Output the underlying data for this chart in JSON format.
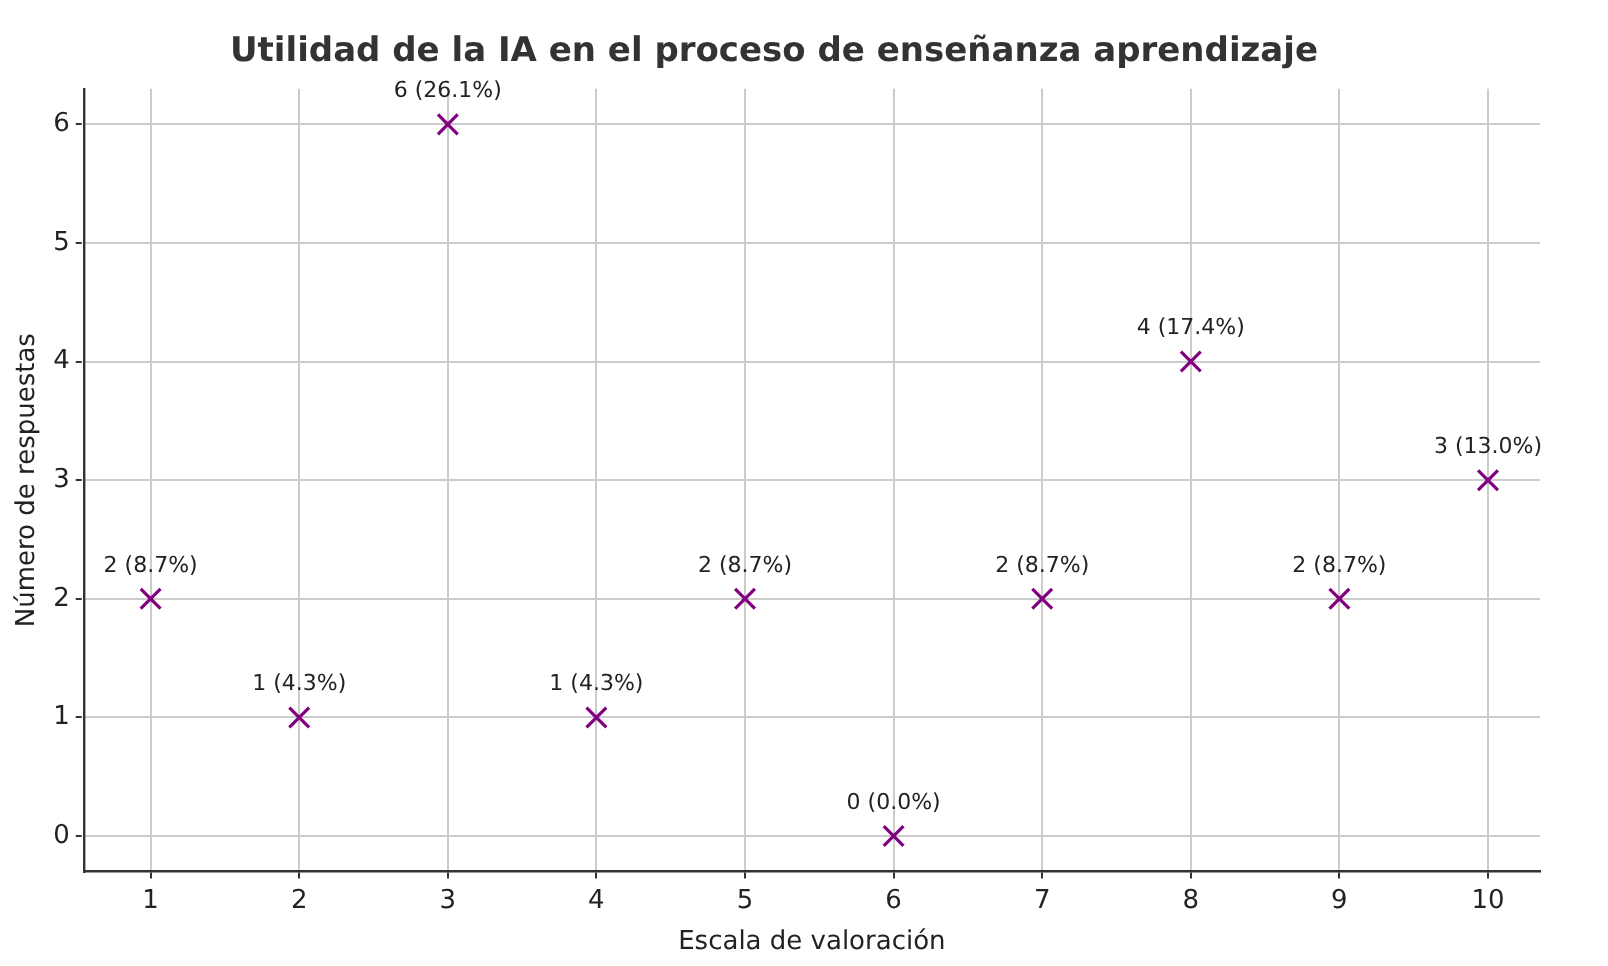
{
  "chart_data": {
    "type": "scatter",
    "title": "Utilidad de la IA en el proceso de enseñanza aprendizaje",
    "xlabel": "Escala de valoración",
    "ylabel": "Número de respuestas",
    "series": [
      {
        "color": "#800080",
        "x": [
          1,
          2,
          3,
          4,
          5,
          6,
          7,
          8,
          9,
          10
        ],
        "values": [
          2,
          1,
          6,
          1,
          2,
          0,
          2,
          4,
          2,
          3
        ],
        "value_labels": [
          "2 (8.7%)",
          "1 (4.3%)",
          "6 (26.1%)",
          "1 (4.3%)",
          "2 (8.7%)",
          "0 (0.0%)",
          "2 (8.7%)",
          "4 (17.4%)",
          "2 (8.7%)",
          "3 (13.0%)"
        ]
      }
    ],
    "xlim": [
      0.55,
      10.35
    ],
    "xticks": [
      1,
      2,
      3,
      4,
      5,
      6,
      7,
      8,
      9,
      10
    ],
    "ylim": [
      -0.3,
      6.3
    ],
    "yticks": [
      0,
      1,
      2,
      3,
      4,
      5,
      6
    ],
    "grid": true,
    "marker": "cross",
    "legend": false
  }
}
